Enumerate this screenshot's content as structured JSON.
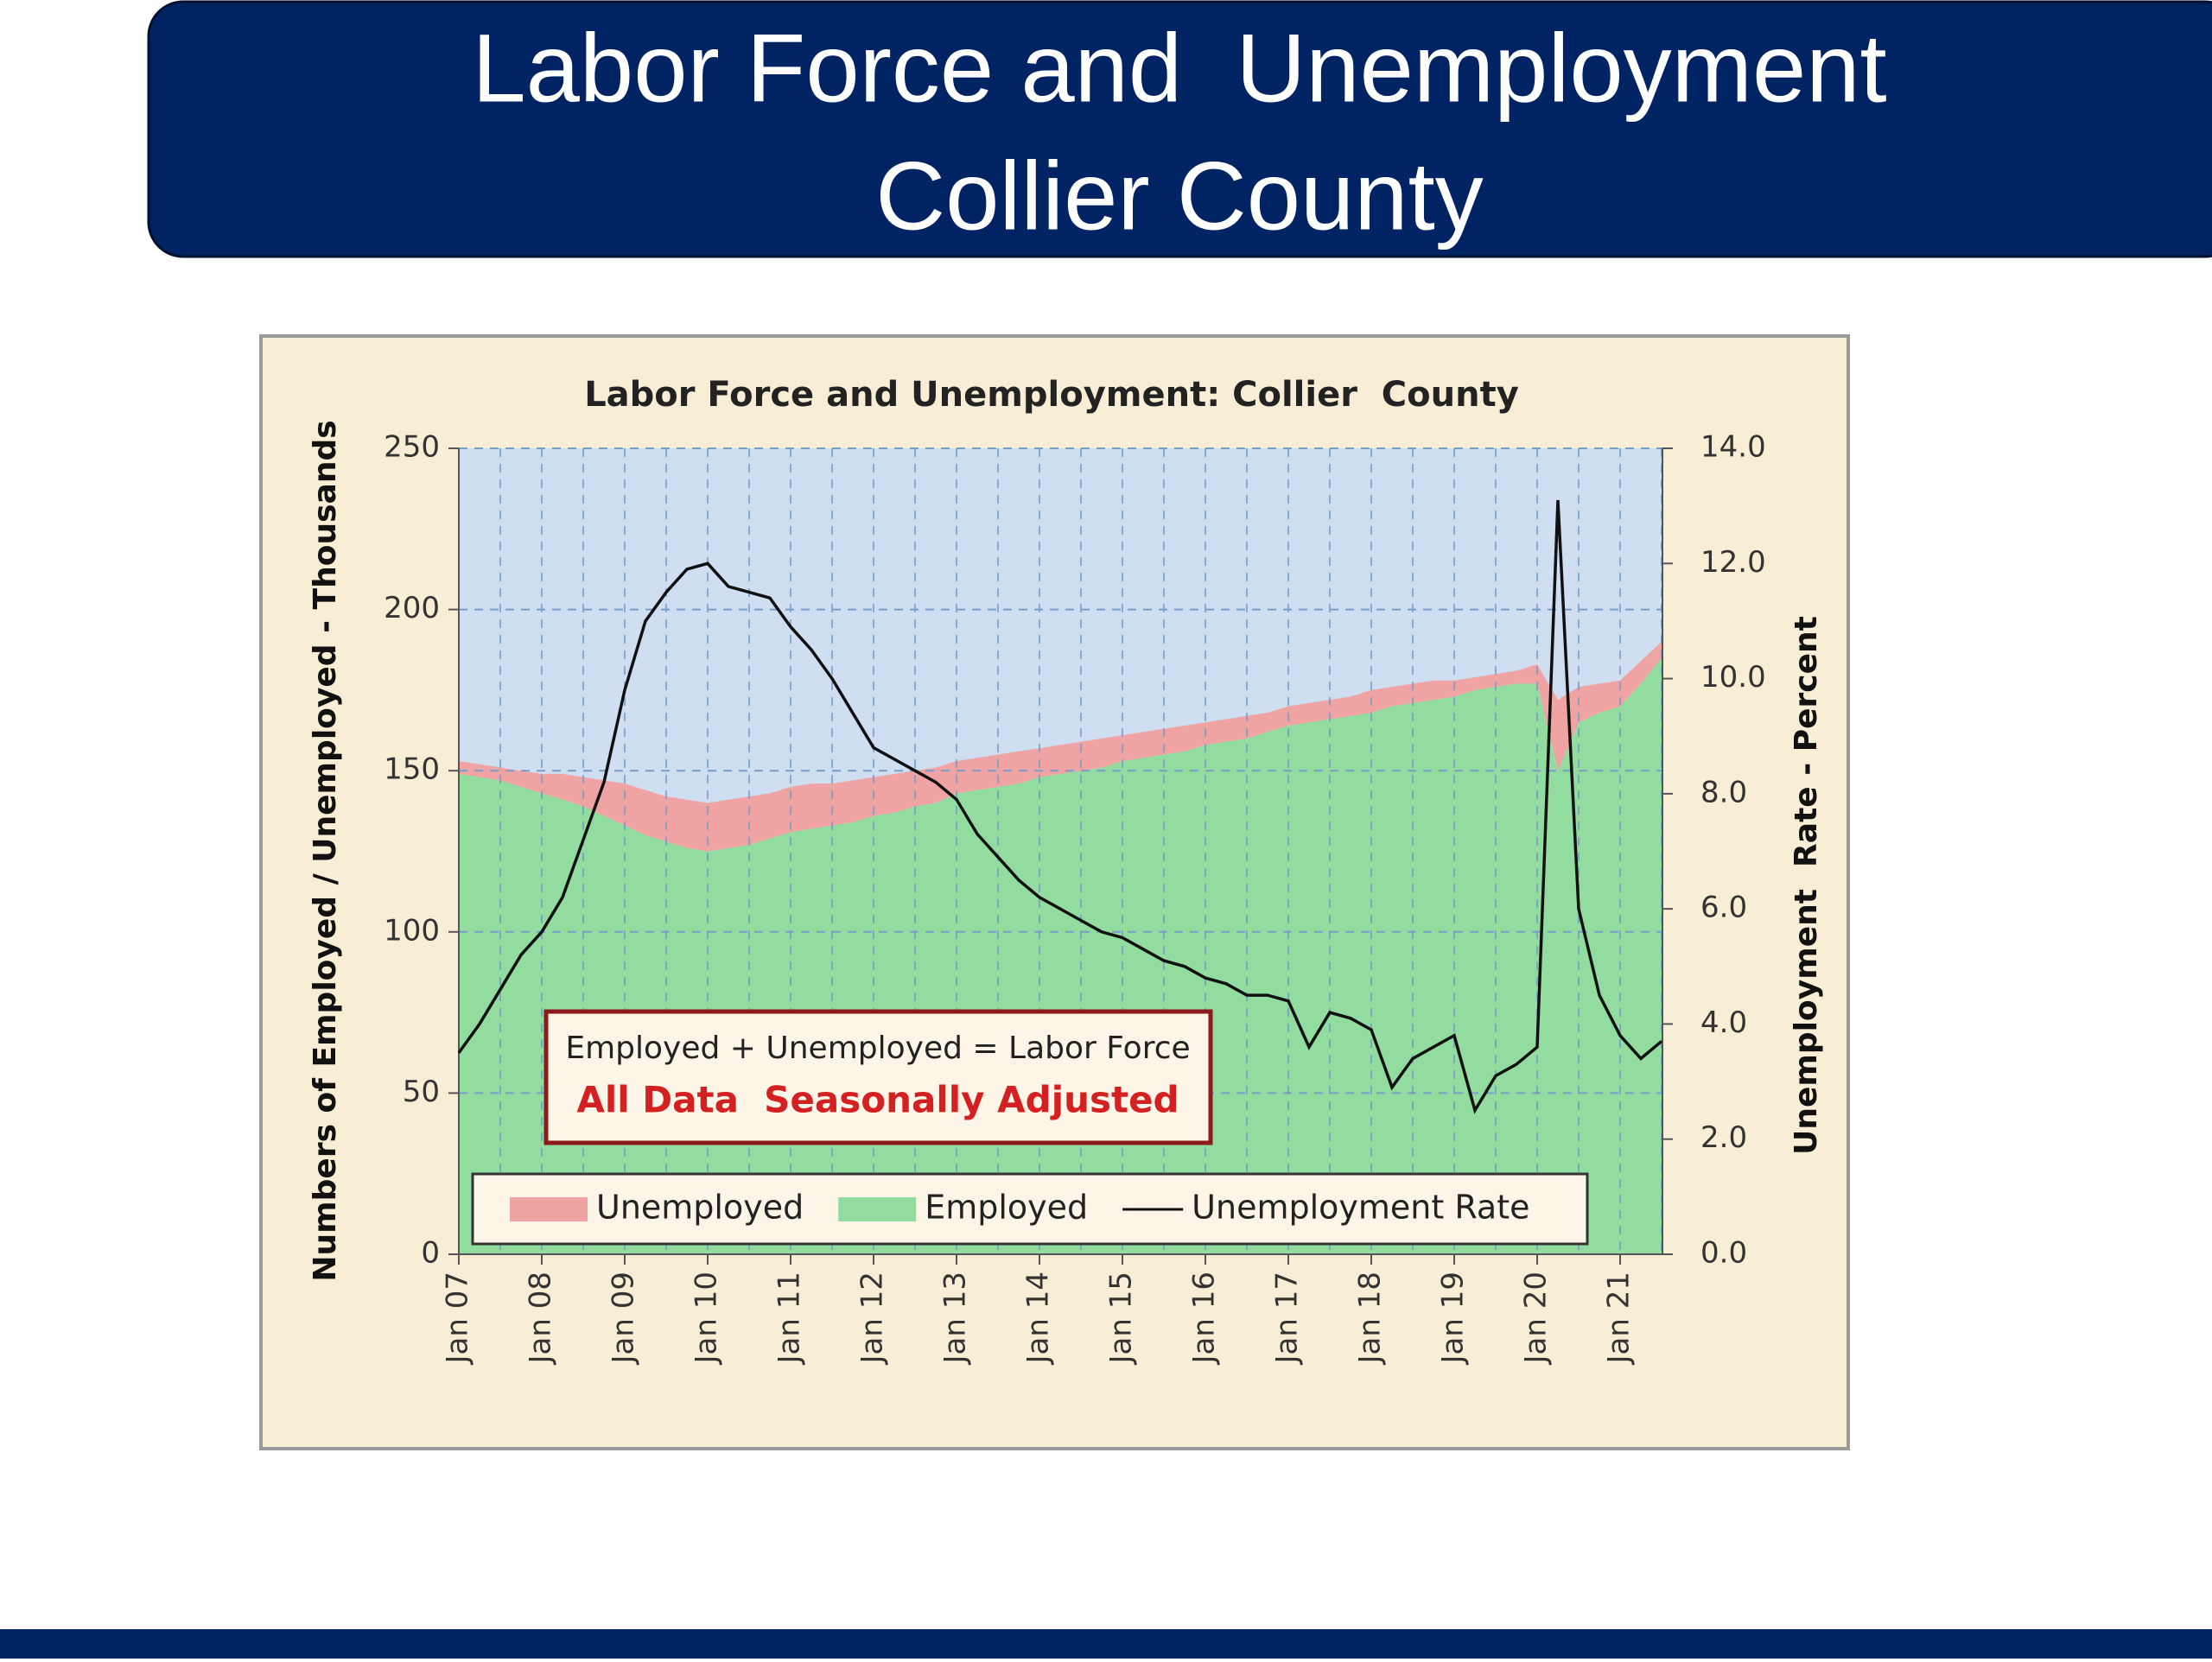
{
  "slide_title": [
    "Labor Force and  Unemployment",
    "Collier County"
  ],
  "chart_data": {
    "type": "stacked_area_line",
    "title": "Labor Force and Unemployment: Collier  County",
    "y_label": "Numbers of Employed / Unemployed - Thousands",
    "y2_label": "Unemployment  Rate - Percent",
    "annotations": [
      "Employed + Unemployed = Labor Force",
      "All Data  Seasonally Adjusted"
    ],
    "categories": [
      "Jan 07",
      null,
      null,
      null,
      "Jan 08",
      null,
      null,
      null,
      "Jan 09",
      null,
      null,
      null,
      "Jan 10",
      null,
      null,
      null,
      "Jan 11",
      null,
      null,
      null,
      "Jan 12",
      null,
      null,
      null,
      "Jan 13",
      null,
      null,
      null,
      "Jan 14",
      null,
      null,
      null,
      "Jan 15",
      null,
      null,
      null,
      "Jan 16",
      null,
      null,
      null,
      "Jan 17",
      null,
      null,
      null,
      "Jan 18",
      null,
      null,
      null,
      "Jan 19",
      null,
      null,
      null,
      "Jan 20",
      null,
      null,
      null,
      "Jan 21",
      null,
      null
    ],
    "series": [
      {
        "name": "Unemployed",
        "color": "#f0a3a3",
        "values": [
          4,
          4,
          4,
          5,
          6,
          8,
          9,
          11,
          13,
          14,
          14,
          15,
          15,
          15,
          15,
          14,
          14,
          14,
          13,
          13,
          12,
          12,
          11,
          11,
          10,
          10,
          10,
          10,
          9,
          9,
          9,
          9,
          8,
          8,
          8,
          8,
          7,
          7,
          7,
          6,
          6,
          6,
          6,
          6,
          7,
          6,
          6,
          6,
          5,
          4,
          4,
          4,
          6,
          22,
          11,
          9,
          8,
          7,
          5
        ]
      },
      {
        "name": "Employed",
        "color": "#92dca0",
        "values": [
          149,
          148,
          147,
          145,
          143,
          141,
          139,
          136,
          133,
          130,
          128,
          126,
          125,
          126,
          127,
          129,
          131,
          132,
          133,
          134,
          136,
          137,
          139,
          140,
          143,
          144,
          145,
          146,
          148,
          149,
          150,
          151,
          153,
          154,
          155,
          156,
          158,
          159,
          160,
          162,
          164,
          165,
          166,
          167,
          168,
          170,
          171,
          172,
          173,
          175,
          176,
          177,
          177,
          150,
          165,
          168,
          170,
          177,
          185
        ]
      },
      {
        "name": "Unemployment Rate",
        "color": "#111111",
        "axis": "y2",
        "values": [
          3.5,
          4.0,
          4.6,
          5.2,
          5.6,
          6.2,
          7.2,
          8.2,
          9.8,
          11.0,
          11.5,
          11.9,
          12.0,
          11.6,
          11.5,
          11.4,
          10.9,
          10.5,
          10.0,
          9.4,
          8.8,
          8.6,
          8.4,
          8.2,
          7.9,
          7.3,
          6.9,
          6.5,
          6.2,
          6.0,
          5.8,
          5.6,
          5.5,
          5.3,
          5.1,
          5.0,
          4.8,
          4.7,
          4.5,
          4.5,
          4.4,
          3.6,
          4.2,
          4.1,
          3.9,
          2.9,
          3.4,
          3.6,
          3.8,
          2.5,
          3.1,
          3.3,
          3.6,
          13.1,
          6.0,
          4.5,
          3.8,
          3.4,
          3.7
        ]
      }
    ],
    "ylim": [
      0,
      250
    ],
    "yticks": [
      0,
      50,
      100,
      150,
      200,
      250
    ],
    "y2lim": [
      0,
      14
    ],
    "y2ticks": [
      {
        "value": 0,
        "label": "0.0"
      },
      {
        "value": 2,
        "label": "2.0"
      },
      {
        "value": 4,
        "label": "4.0"
      },
      {
        "value": 6,
        "label": "6.0"
      },
      {
        "value": 8,
        "label": "8.0"
      },
      {
        "value": 10,
        "label": "10.0"
      },
      {
        "value": 12,
        "label": "12.0"
      },
      {
        "value": 14,
        "label": "14.0"
      }
    ],
    "grid": true
  }
}
